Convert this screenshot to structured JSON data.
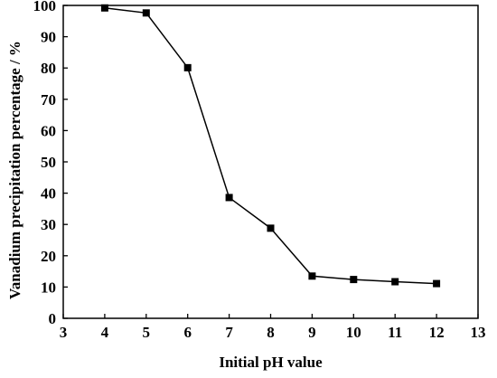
{
  "chart_data": {
    "type": "line",
    "title": "",
    "xlabel": "Initial pH value",
    "ylabel": "Vanadium precipitation percentage / %",
    "xlim": [
      3,
      13
    ],
    "ylim": [
      0,
      100
    ],
    "xticks": [
      3,
      4,
      5,
      6,
      7,
      8,
      9,
      10,
      11,
      12,
      13
    ],
    "yticks": [
      0,
      10,
      20,
      30,
      40,
      50,
      60,
      70,
      80,
      90,
      100
    ],
    "grid": false,
    "legend": "none",
    "series": [
      {
        "x": [
          4,
          5,
          6,
          7,
          8,
          9,
          10,
          11,
          12
        ],
        "y": [
          99.2,
          97.6,
          80.1,
          38.6,
          28.8,
          13.5,
          12.4,
          11.7,
          11.1
        ],
        "marker": "square",
        "color": "#000000"
      }
    ]
  }
}
